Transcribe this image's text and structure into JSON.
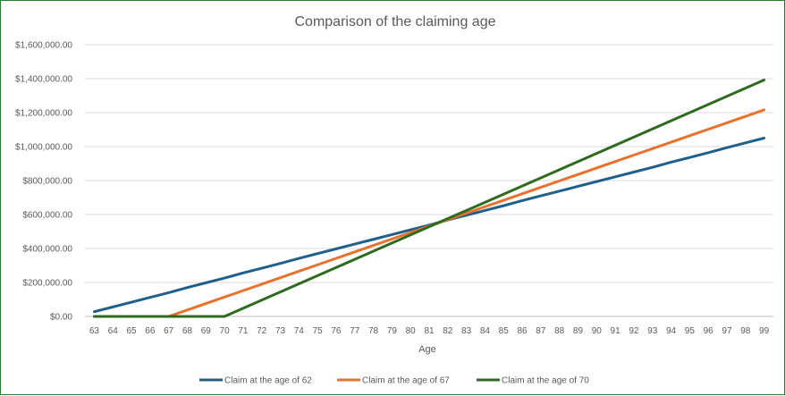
{
  "chart_data": {
    "type": "line",
    "title": "Comparison of the claiming age",
    "xlabel": "Age",
    "ylabel": "",
    "ylim": [
      0,
      1600000
    ],
    "yticks": [
      0,
      200000,
      400000,
      600000,
      800000,
      1000000,
      1200000,
      1400000,
      1600000
    ],
    "ytick_labels": [
      "$0.00",
      "$200,000.00",
      "$400,000.00",
      "$600,000.00",
      "$800,000.00",
      "$1,000,000.00",
      "$1,200,000.00",
      "$1,400,000.00",
      "$1,600,000.00"
    ],
    "grid": true,
    "legend_position": "bottom",
    "x": [
      63,
      64,
      65,
      66,
      67,
      68,
      69,
      70,
      71,
      72,
      73,
      74,
      75,
      76,
      77,
      78,
      79,
      80,
      81,
      82,
      83,
      84,
      85,
      86,
      87,
      88,
      89,
      90,
      91,
      92,
      93,
      94,
      95,
      96,
      97,
      98,
      99
    ],
    "series": [
      {
        "name": "Claim at the age of 62",
        "color": "#1f5f8b",
        "values": [
          28000,
          56000,
          84000,
          112000,
          140000,
          170000,
          198000,
          226000,
          256000,
          284000,
          312000,
          342000,
          370000,
          398000,
          426000,
          454000,
          482000,
          510000,
          538000,
          568000,
          596000,
          624000,
          652000,
          682000,
          710000,
          738000,
          766000,
          794000,
          822000,
          850000,
          878000,
          908000,
          936000,
          964000,
          994000,
          1022000,
          1050000
        ]
      },
      {
        "name": "Claim at the age of 67",
        "color": "#e8712e",
        "values": [
          0,
          0,
          0,
          0,
          0,
          38000,
          76000,
          114000,
          152000,
          190000,
          228000,
          266000,
          304000,
          342000,
          380000,
          418000,
          456000,
          494000,
          532000,
          570000,
          608000,
          646000,
          684000,
          722000,
          760000,
          798000,
          836000,
          874000,
          912000,
          950000,
          988000,
          1026000,
          1064000,
          1102000,
          1140000,
          1178000,
          1216000
        ]
      },
      {
        "name": "Claim at the age of 70",
        "color": "#2e6b1f",
        "values": [
          0,
          0,
          0,
          0,
          0,
          0,
          0,
          0,
          48000,
          96000,
          144000,
          192000,
          240000,
          288000,
          336000,
          384000,
          432000,
          480000,
          528000,
          576000,
          624000,
          672000,
          720000,
          768000,
          816000,
          864000,
          912000,
          960000,
          1008000,
          1056000,
          1104000,
          1152000,
          1200000,
          1248000,
          1296000,
          1344000,
          1392000
        ]
      }
    ]
  }
}
